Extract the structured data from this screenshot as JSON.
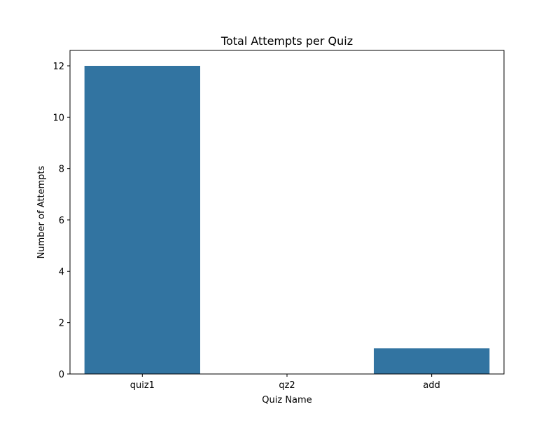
{
  "chart_data": {
    "type": "bar",
    "title": "Total Attempts per Quiz",
    "xlabel": "Quiz Name",
    "ylabel": "Number of Attempts",
    "categories": [
      "quiz1",
      "qz2",
      "add"
    ],
    "values": [
      12,
      0,
      1
    ],
    "ylim": [
      0,
      12.6
    ],
    "yticks": [
      0,
      2,
      4,
      6,
      8,
      10,
      12
    ],
    "grid": false,
    "legend": "none",
    "bar_color": "#3274a1"
  }
}
